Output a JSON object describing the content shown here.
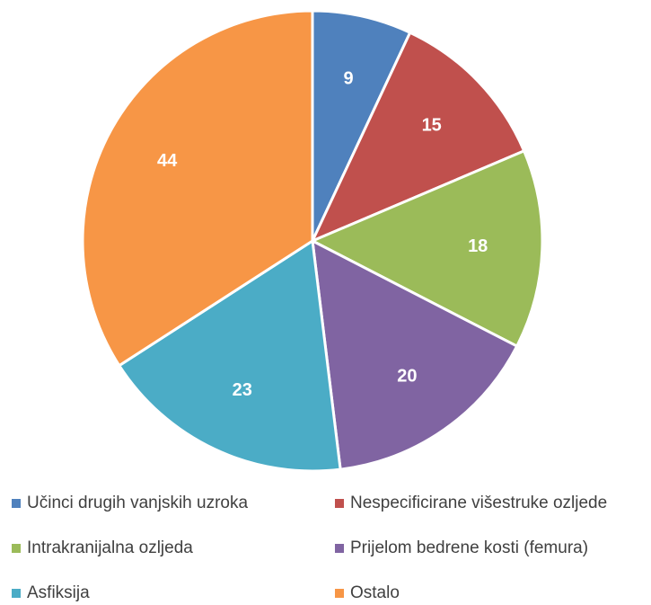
{
  "chart_data": {
    "type": "pie",
    "categories": [
      "Učinci drugih vanjskih uzroka",
      "Nespecificirane višestruke ozljede",
      "Intrakranijalna ozljeda",
      "Prijelom bedrene kosti (femura)",
      "Asfiksija",
      "Ostalo"
    ],
    "values": [
      9,
      15,
      18,
      20,
      23,
      44
    ],
    "colors": [
      "#4f81bd",
      "#c0504d",
      "#9bbb59",
      "#8064a2",
      "#4bacc6",
      "#f79646"
    ],
    "legend": "bottom"
  }
}
